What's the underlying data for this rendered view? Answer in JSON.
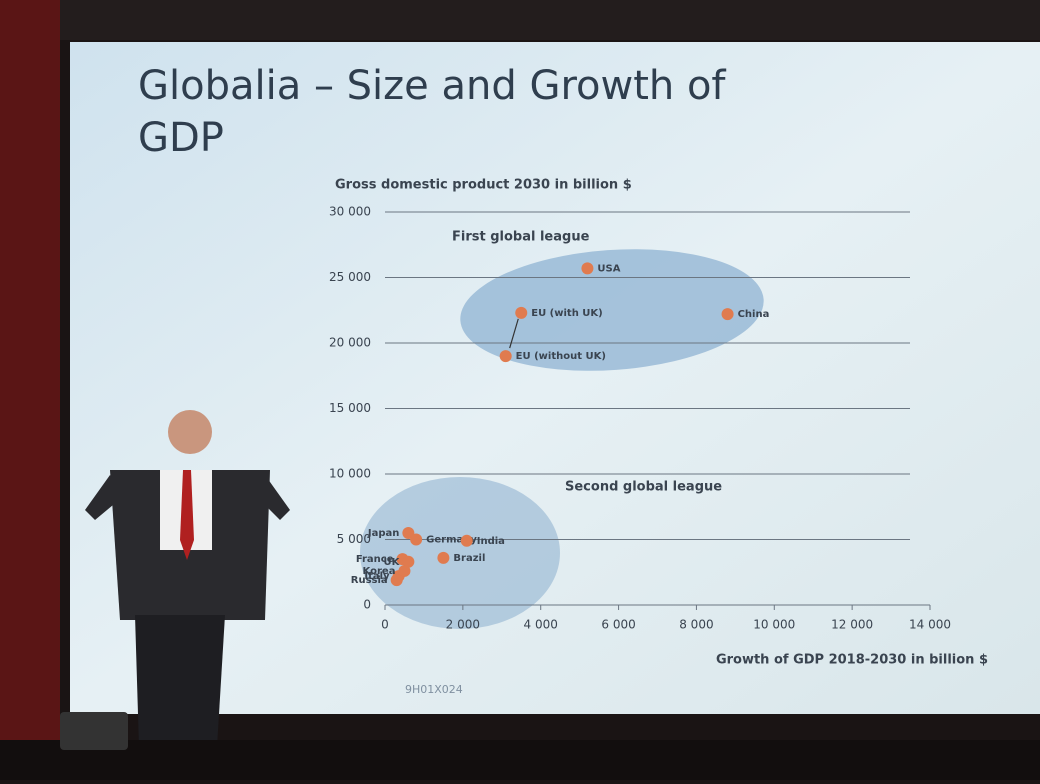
{
  "chart_data": {
    "type": "scatter",
    "title": "Globalia – Size and Growth of GDP",
    "y_label": "Gross domestic product 2030 in billion $",
    "x_label": "Growth of GDP 2018-2030 in billion $",
    "annotations": [
      "First global league",
      "Second global league"
    ],
    "footer": "9H01X024",
    "point_labels": [
      "USA",
      "China",
      "EU (with UK)",
      "EU (without UK)",
      "Japan",
      "Germany",
      "India",
      "France",
      "UK",
      "Brazil",
      "Italy",
      "Korea",
      "Russia"
    ],
    "x": [
      5200,
      8800,
      3500,
      3100,
      600,
      800,
      2100,
      450,
      600,
      1500,
      350,
      500,
      300
    ],
    "values": [
      25700,
      22200,
      22300,
      19000,
      5500,
      5000,
      4900,
      3500,
      3300,
      3600,
      2200,
      2600,
      1900
    ],
    "color": "#e07b4f",
    "xlim": [
      0,
      14000
    ],
    "ylim": [
      0,
      30000
    ],
    "xticks": [
      0,
      {
        "value": 2000,
        "label": "2 000"
      },
      {
        "value": 4000,
        "label": "4 000"
      },
      {
        "value": 6000,
        "label": "6 000"
      },
      {
        "value": 8000,
        "label": "8 000"
      },
      {
        "value": 10000,
        "label": "10 000"
      },
      {
        "value": 12000,
        "label": "12 000"
      },
      {
        "value": 14000,
        "label": "14 000"
      }
    ],
    "yticks": [
      0,
      {
        "value": 5000,
        "label": "5 000"
      },
      {
        "value": 10000,
        "label": "10 000"
      },
      {
        "value": 15000,
        "label": "15 000"
      },
      {
        "value": 20000,
        "label": "20 000"
      },
      {
        "value": 25000,
        "label": "25 000"
      },
      {
        "value": 30000,
        "label": "30 000"
      }
    ],
    "grid": true
  }
}
